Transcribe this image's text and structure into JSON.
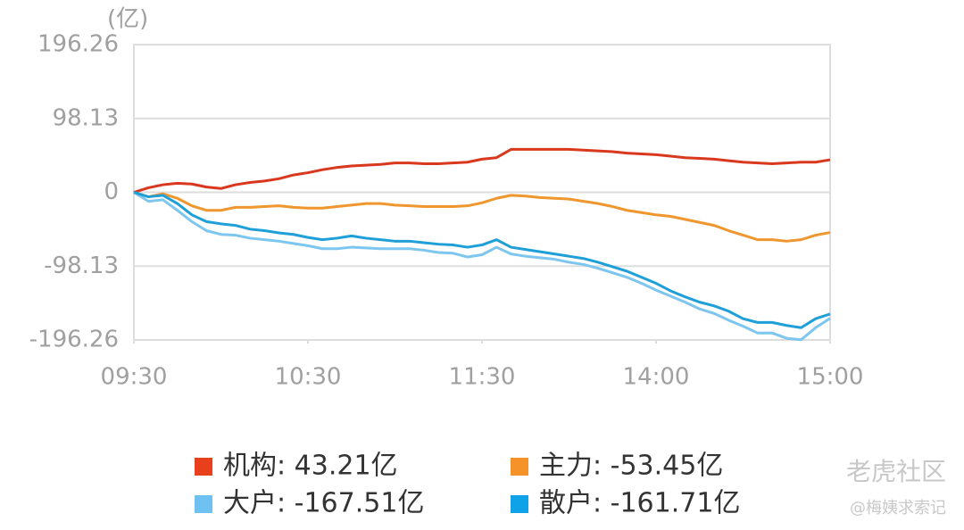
{
  "chart_data": {
    "type": "line",
    "unit_label": "(亿)",
    "x": [
      0,
      5,
      10,
      15,
      20,
      25,
      30,
      35,
      40,
      45,
      50,
      55,
      60,
      65,
      70,
      75,
      80,
      85,
      90,
      95,
      100,
      105,
      110,
      115,
      120,
      125,
      130,
      135,
      140,
      145,
      150,
      155,
      160,
      165,
      170,
      175,
      180,
      185,
      190,
      195,
      200,
      205,
      210,
      215,
      220,
      225,
      230,
      235,
      240
    ],
    "xlim": [
      0,
      240
    ],
    "xticks": [
      {
        "value": 0,
        "label": "09:30"
      },
      {
        "value": 60,
        "label": "10:30"
      },
      {
        "value": 120,
        "label": "11:30"
      },
      {
        "value": 180,
        "label": "14:00"
      },
      {
        "value": 240,
        "label": "15:00"
      }
    ],
    "ylim": [
      -196.26,
      196.26
    ],
    "yticks": [
      -196.26,
      -98.13,
      0,
      98.13,
      196.26
    ],
    "grid": true,
    "series": [
      {
        "name": "机构: 43.21亿",
        "color": "#d9381e",
        "legend_color": "#e8401c",
        "values": [
          0,
          6,
          10,
          12,
          11,
          7,
          5,
          10,
          13,
          15,
          18,
          23,
          26,
          30,
          33,
          35,
          36,
          37,
          39,
          39,
          38,
          38,
          39,
          40,
          44,
          46,
          57,
          57,
          57,
          57,
          57,
          56,
          55,
          54,
          52,
          51,
          50,
          48,
          46,
          45,
          44,
          42,
          40,
          39,
          38,
          39,
          40,
          40,
          43.21
        ]
      },
      {
        "name": "主力: -53.45亿",
        "color": "#f0962e",
        "legend_color": "#f5922a",
        "values": [
          0,
          -6,
          -2,
          -8,
          -18,
          -24,
          -24,
          -20,
          -20,
          -19,
          -18,
          -20,
          -21,
          -21,
          -19,
          -17,
          -15,
          -15,
          -17,
          -18,
          -19,
          -19,
          -19,
          -18,
          -14,
          -8,
          -4,
          -5,
          -7,
          -8,
          -9,
          -12,
          -15,
          -19,
          -24,
          -27,
          -30,
          -32,
          -36,
          -40,
          -44,
          -51,
          -57,
          -63,
          -63,
          -65,
          -63,
          -57,
          -53.45
        ]
      },
      {
        "name": "大户: -167.51亿",
        "color": "#7cc6ef",
        "legend_color": "#6ec1f0",
        "values": [
          0,
          -12,
          -10,
          -24,
          -39,
          -51,
          -56,
          -57,
          -61,
          -63,
          -65,
          -68,
          -71,
          -75,
          -75,
          -73,
          -74,
          -75,
          -75,
          -75,
          -77,
          -80,
          -81,
          -86,
          -83,
          -73,
          -82,
          -85,
          -87,
          -89,
          -93,
          -96,
          -101,
          -107,
          -113,
          -121,
          -130,
          -138,
          -146,
          -155,
          -161,
          -170,
          -178,
          -187,
          -187,
          -194,
          -196,
          -180,
          -167.51
        ]
      },
      {
        "name": "散户: -161.71亿",
        "color": "#1f9fd8",
        "legend_color": "#10a2e8",
        "values": [
          0,
          -6,
          -4,
          -15,
          -30,
          -39,
          -42,
          -44,
          -49,
          -51,
          -54,
          -56,
          -60,
          -63,
          -61,
          -58,
          -61,
          -63,
          -65,
          -65,
          -67,
          -69,
          -70,
          -73,
          -70,
          -63,
          -73,
          -76,
          -79,
          -82,
          -85,
          -88,
          -93,
          -99,
          -105,
          -113,
          -121,
          -131,
          -139,
          -146,
          -151,
          -158,
          -168,
          -173,
          -173,
          -177,
          -180,
          -168,
          -161.71
        ]
      }
    ],
    "watermark": "老虎社区",
    "watermark_author": "@梅姨求索记"
  }
}
